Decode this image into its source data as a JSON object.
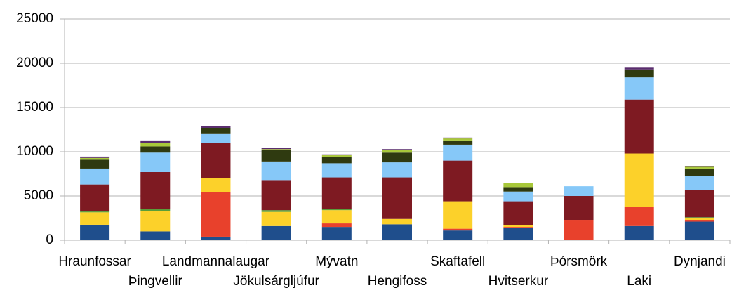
{
  "chart_data": {
    "type": "stacked_bar",
    "categories": [
      "Hraunfossar",
      "Þingvellir",
      "Landmannalaugar",
      "Jökulsárgljúfur",
      "Mývatn",
      "Hengifoss",
      "Skaftafell",
      "Hvitserkur",
      "Þórsmörk",
      "Laki",
      "Dynjandi"
    ],
    "series": [
      {
        "color": "#1f4e8c",
        "values": [
          1750,
          1000,
          400,
          1600,
          1500,
          1800,
          1100,
          1400,
          0,
          1600,
          2100
        ]
      },
      {
        "color": "#e8412c",
        "values": [
          0,
          0,
          5000,
          0,
          400,
          0,
          200,
          100,
          2300,
          2200,
          200
        ]
      },
      {
        "color": "#fcd12a",
        "values": [
          1400,
          2300,
          1600,
          1600,
          1500,
          600,
          3100,
          200,
          0,
          6000,
          200
        ]
      },
      {
        "color": "#5a9e3a",
        "values": [
          100,
          200,
          0,
          200,
          100,
          0,
          0,
          0,
          0,
          0,
          100
        ]
      },
      {
        "color": "#7e1a22",
        "values": [
          3050,
          4200,
          4000,
          3400,
          3600,
          4700,
          4600,
          2700,
          2700,
          6100,
          3100
        ]
      },
      {
        "color": "#86c8f8",
        "values": [
          1800,
          2200,
          1000,
          2100,
          1600,
          1700,
          1800,
          1100,
          1100,
          2500,
          1600
        ]
      },
      {
        "color": "#2f3a10",
        "values": [
          1000,
          700,
          700,
          1300,
          700,
          1100,
          400,
          500,
          0,
          900,
          800
        ]
      },
      {
        "color": "#a8c83a",
        "values": [
          200,
          400,
          0,
          100,
          200,
          300,
          300,
          500,
          0,
          0,
          200
        ]
      },
      {
        "color": "#5a2d6e",
        "values": [
          150,
          200,
          200,
          100,
          100,
          100,
          100,
          0,
          0,
          200,
          100
        ]
      }
    ],
    "ylim": [
      0,
      25000
    ],
    "yticks": [
      0,
      5000,
      10000,
      15000,
      20000,
      25000
    ],
    "grid": true
  }
}
